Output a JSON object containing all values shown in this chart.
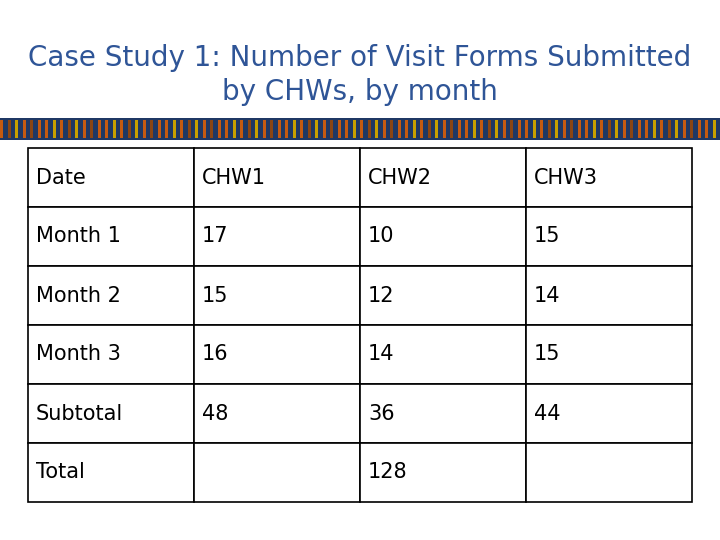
{
  "title": "Case Study 1: Number of Visit Forms Submitted\nby CHWs, by month",
  "title_color": "#2F5597",
  "title_fontsize": 20,
  "background_color": "#ffffff",
  "table_headers": [
    "Date",
    "CHW1",
    "CHW2",
    "CHW3"
  ],
  "table_rows": [
    [
      "Month 1",
      "17",
      "10",
      "15"
    ],
    [
      "Month 2",
      "15",
      "12",
      "14"
    ],
    [
      "Month 3",
      "16",
      "14",
      "15"
    ],
    [
      "Subtotal",
      "48",
      "36",
      "44"
    ],
    [
      "Total",
      "",
      "128",
      ""
    ]
  ],
  "table_font_size": 15,
  "table_text_color": "#000000",
  "table_border_color": "#000000",
  "cell_bg_color": "#ffffff",
  "deco_bar_navy": "#1F3864",
  "deco_bar_orange": "#C55A11",
  "deco_bar_brown": "#8B4513",
  "deco_bar_gold": "#C8A000"
}
